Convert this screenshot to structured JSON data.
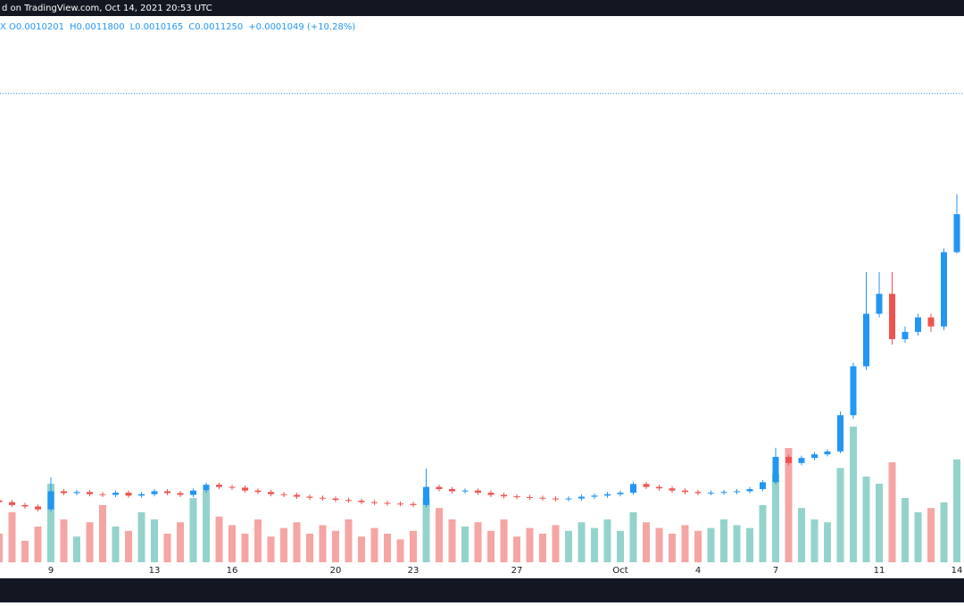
{
  "header": {
    "caption": "d on TradingView.com, Oct 14, 2021 20:53 UTC",
    "symbol_tail": "X",
    "ohlc_legend": [
      "O0.0010201",
      "H0.0011800",
      "L0.0010165",
      "C0.0011250",
      "+0.0001049 (+10.28%)"
    ]
  },
  "chart_data": {
    "type": "candlestick",
    "categories": [
      "",
      null,
      null,
      null,
      "9",
      null,
      null,
      null,
      null,
      null,
      null,
      null,
      "13",
      null,
      null,
      null,
      null,
      null,
      "16",
      null,
      null,
      null,
      null,
      null,
      null,
      null,
      "20",
      null,
      null,
      null,
      null,
      null,
      "23",
      null,
      null,
      null,
      null,
      null,
      null,
      null,
      "27",
      null,
      null,
      null,
      null,
      null,
      null,
      null,
      "Oct",
      null,
      null,
      null,
      null,
      null,
      "4",
      null,
      null,
      null,
      null,
      null,
      "7",
      null,
      null,
      null,
      null,
      null,
      null,
      null,
      "11",
      null,
      null,
      null,
      null,
      null,
      "14"
    ],
    "open": [
      0.000335,
      0.00033,
      0.000322,
      0.000318,
      0.00031,
      0.00036,
      0.000355,
      0.000358,
      0.000352,
      0.00035,
      0.000356,
      0.000348,
      0.000352,
      0.00036,
      0.000355,
      0.00035,
      0.000362,
      0.000378,
      0.000372,
      0.00037,
      0.000362,
      0.000358,
      0.000352,
      0.00035,
      0.000345,
      0.000342,
      0.00034,
      0.000336,
      0.000334,
      0.00033,
      0.000328,
      0.000326,
      0.000325,
      0.000322,
      0.000372,
      0.000366,
      0.00036,
      0.000362,
      0.000356,
      0.00035,
      0.000346,
      0.000344,
      0.000342,
      0.00034,
      0.000338,
      0.00034,
      0.000345,
      0.000348,
      0.000352,
      0.000356,
      0.00038,
      0.000372,
      0.000368,
      0.000362,
      0.000358,
      0.000355,
      0.000356,
      0.000358,
      0.00036,
      0.000366,
      0.000385,
      0.000455,
      0.000438,
      0.000452,
      0.000462,
      0.00047,
      0.00057,
      0.000705,
      0.00085,
      0.000905,
      0.00078,
      0.0008,
      0.00084,
      0.000815,
      0.0010201
    ],
    "high": [
      0.000341,
      0.000336,
      0.000328,
      0.000324,
      0.000398,
      0.000366,
      0.000364,
      0.000364,
      0.000358,
      0.000362,
      0.000362,
      0.000358,
      0.000366,
      0.000366,
      0.000361,
      0.000368,
      0.000384,
      0.000384,
      0.000378,
      0.000376,
      0.000368,
      0.000364,
      0.000358,
      0.000356,
      0.000351,
      0.000348,
      0.000346,
      0.000342,
      0.00034,
      0.000336,
      0.000334,
      0.000332,
      0.000331,
      0.000423,
      0.000378,
      0.000372,
      0.000368,
      0.000368,
      0.000362,
      0.000356,
      0.000352,
      0.00035,
      0.000348,
      0.000346,
      0.000346,
      0.000351,
      0.000354,
      0.000358,
      0.000362,
      0.000386,
      0.000386,
      0.000378,
      0.000374,
      0.000368,
      0.000364,
      0.000362,
      0.000364,
      0.000366,
      0.000372,
      0.000391,
      0.00048,
      0.000461,
      0.000458,
      0.000468,
      0.000476,
      0.00058,
      0.000715,
      0.000965,
      0.000965,
      0.000965,
      0.000815,
      0.00085,
      0.00085,
      0.00103,
      0.00118
    ],
    "low": [
      0.000324,
      0.000316,
      0.000312,
      0.000304,
      0.000304,
      0.000349,
      0.000349,
      0.000346,
      0.000344,
      0.000344,
      0.000342,
      0.000342,
      0.000346,
      0.000349,
      0.000344,
      0.000344,
      0.000356,
      0.000366,
      0.000364,
      0.000356,
      0.000352,
      0.000346,
      0.000344,
      0.000339,
      0.000336,
      0.000334,
      0.00033,
      0.000328,
      0.000324,
      0.000322,
      0.00032,
      0.000319,
      0.000316,
      0.000316,
      0.00036,
      0.000354,
      0.000354,
      0.00035,
      0.000344,
      0.00034,
      0.000338,
      0.000336,
      0.000334,
      0.000332,
      0.000332,
      0.000334,
      0.000339,
      0.000342,
      0.000346,
      0.00035,
      0.000366,
      0.000362,
      0.000356,
      0.000352,
      0.000349,
      0.000349,
      0.00035,
      0.000352,
      0.000354,
      0.00036,
      0.000379,
      0.000432,
      0.000432,
      0.000446,
      0.000456,
      0.000465,
      0.00056,
      0.000695,
      0.00084,
      0.000765,
      0.00077,
      0.00079,
      0.0008,
      0.000805,
      0.0010165
    ],
    "close": [
      0.00033,
      0.000322,
      0.000318,
      0.00031,
      0.00036,
      0.000355,
      0.000358,
      0.000352,
      0.00035,
      0.000356,
      0.000348,
      0.000352,
      0.00036,
      0.000355,
      0.00035,
      0.000362,
      0.000378,
      0.000372,
      0.00037,
      0.000362,
      0.000358,
      0.000352,
      0.00035,
      0.000345,
      0.000342,
      0.00034,
      0.000336,
      0.000334,
      0.00033,
      0.000328,
      0.000326,
      0.000325,
      0.000322,
      0.000372,
      0.000366,
      0.00036,
      0.000362,
      0.000356,
      0.00035,
      0.000346,
      0.000344,
      0.000342,
      0.00034,
      0.000338,
      0.00034,
      0.000345,
      0.000348,
      0.000352,
      0.000356,
      0.00038,
      0.000372,
      0.000368,
      0.000362,
      0.000358,
      0.000355,
      0.000356,
      0.000358,
      0.00036,
      0.000366,
      0.000385,
      0.000455,
      0.000438,
      0.000452,
      0.000462,
      0.00047,
      0.00057,
      0.000705,
      0.00085,
      0.000905,
      0.00078,
      0.0008,
      0.00084,
      0.000815,
      0.00102,
      0.001125
    ],
    "volume": [
      20,
      35,
      15,
      25,
      55,
      30,
      18,
      28,
      40,
      25,
      22,
      35,
      30,
      20,
      28,
      45,
      50,
      32,
      26,
      20,
      30,
      18,
      24,
      28,
      20,
      26,
      22,
      30,
      18,
      24,
      20,
      16,
      22,
      45,
      38,
      30,
      25,
      28,
      22,
      30,
      18,
      24,
      20,
      26,
      22,
      28,
      24,
      30,
      22,
      35,
      28,
      24,
      20,
      26,
      22,
      24,
      30,
      26,
      24,
      40,
      62,
      80,
      38,
      30,
      28,
      66,
      95,
      60,
      55,
      70,
      45,
      35,
      38,
      42,
      72
    ],
    "ylim": [
      0.000164,
      0.001662
    ],
    "volume_lim": [
      0,
      100
    ],
    "price_line": 0.001458,
    "up_color": "#2196f3",
    "down_color": "#ef5350",
    "volume_up_color": "#94d3cb",
    "volume_down_color": "#f5a5a3"
  }
}
